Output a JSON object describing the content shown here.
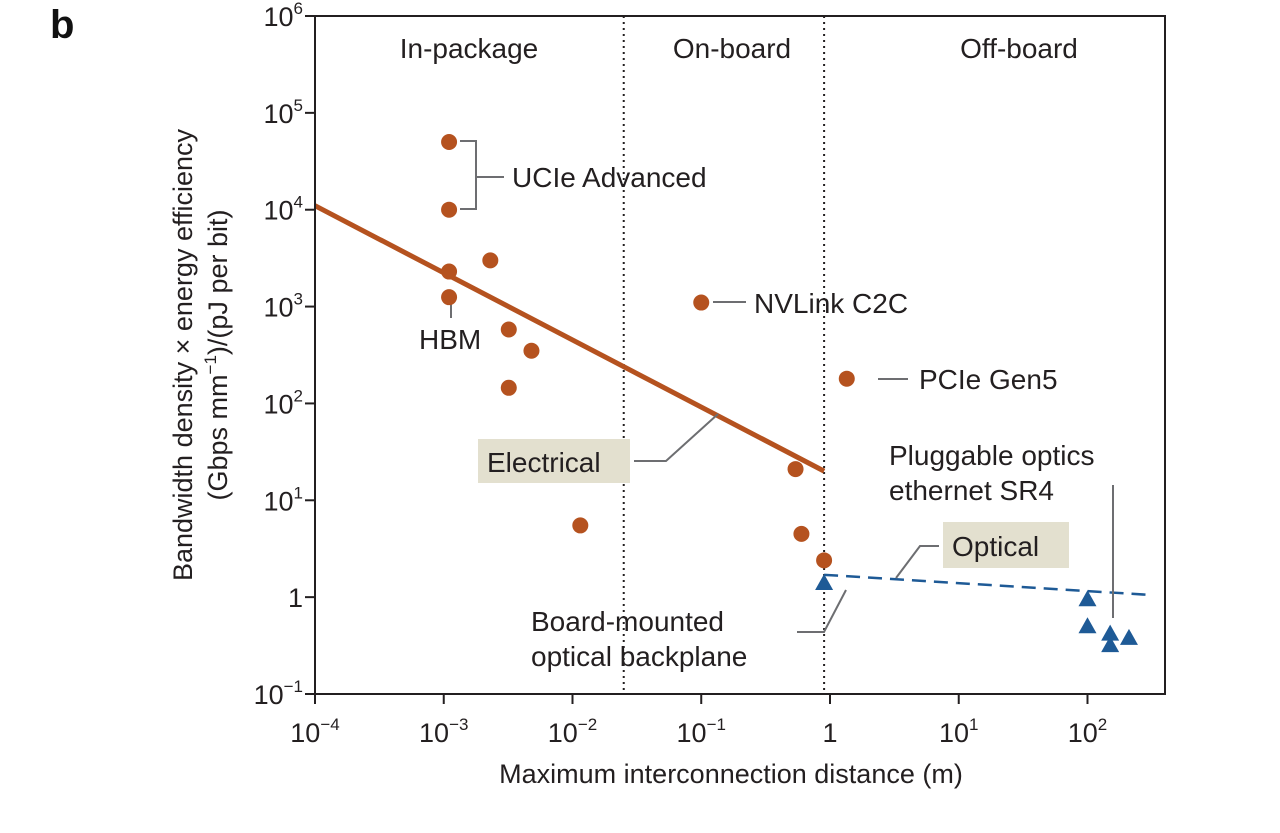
{
  "panel_label": "b",
  "chart_data": {
    "type": "scatter",
    "xlabel": "Maximum interconnection distance (m)",
    "ylabel_line1": "Bandwidth density × energy efficiency",
    "ylabel_line2_prefix": "(Gbps mm",
    "ylabel_line2_exp": "−1",
    "ylabel_line2_suffix": ")/(pJ per bit)",
    "x_scale": "log",
    "y_scale": "log",
    "xlim": [
      0.0001,
      400
    ],
    "ylim": [
      0.1,
      1000000
    ],
    "x_ticks": [
      {
        "value": 0.0001,
        "base": "10",
        "exp": "−4"
      },
      {
        "value": 0.001,
        "base": "10",
        "exp": "−3"
      },
      {
        "value": 0.01,
        "base": "10",
        "exp": "−2"
      },
      {
        "value": 0.1,
        "base": "10",
        "exp": "−1"
      },
      {
        "value": 1,
        "base": "1",
        "exp": ""
      },
      {
        "value": 10,
        "base": "10",
        "exp": "1"
      },
      {
        "value": 100,
        "base": "10",
        "exp": "2"
      }
    ],
    "y_ticks": [
      {
        "value": 0.1,
        "base": "10",
        "exp": "−1"
      },
      {
        "value": 1,
        "base": "1",
        "exp": ""
      },
      {
        "value": 10,
        "base": "10",
        "exp": "1"
      },
      {
        "value": 100,
        "base": "10",
        "exp": "2"
      },
      {
        "value": 1000,
        "base": "10",
        "exp": "3"
      },
      {
        "value": 10000,
        "base": "10",
        "exp": "4"
      },
      {
        "value": 100000,
        "base": "10",
        "exp": "5"
      },
      {
        "value": 1000000,
        "base": "10",
        "exp": "6"
      }
    ],
    "regions": [
      {
        "label": "In-package",
        "x_from": 0.0001,
        "x_to": 0.025
      },
      {
        "label": "On-board",
        "x_from": 0.025,
        "x_to": 0.9
      },
      {
        "label": "Off-board",
        "x_from": 0.9,
        "x_to": 400
      }
    ],
    "region_dividers_x": [
      0.025,
      0.9
    ],
    "colors": {
      "electrical": "#b5521f",
      "optical": "#1e5a96",
      "label_box": "#e3e0cf",
      "axis": "#231f20"
    },
    "series": [
      {
        "name": "Electrical",
        "marker": "circle",
        "points": [
          {
            "x": 0.0011,
            "y": 50000
          },
          {
            "x": 0.0011,
            "y": 10000
          },
          {
            "x": 0.0011,
            "y": 2300
          },
          {
            "x": 0.0011,
            "y": 1250
          },
          {
            "x": 0.0023,
            "y": 3000
          },
          {
            "x": 0.0032,
            "y": 580
          },
          {
            "x": 0.0048,
            "y": 350
          },
          {
            "x": 0.0032,
            "y": 145
          },
          {
            "x": 0.0115,
            "y": 5.5
          },
          {
            "x": 0.1,
            "y": 1100
          },
          {
            "x": 0.54,
            "y": 21
          },
          {
            "x": 0.6,
            "y": 4.5
          },
          {
            "x": 0.9,
            "y": 2.4
          },
          {
            "x": 1.35,
            "y": 180
          }
        ],
        "trend": {
          "x": [
            0.0001,
            0.9
          ],
          "y": [
            11000,
            20
          ]
        }
      },
      {
        "name": "Optical",
        "marker": "triangle",
        "points": [
          {
            "x": 0.9,
            "y": 1.4
          },
          {
            "x": 100,
            "y": 0.95
          },
          {
            "x": 100,
            "y": 0.5
          },
          {
            "x": 150,
            "y": 0.42
          },
          {
            "x": 150,
            "y": 0.32
          },
          {
            "x": 210,
            "y": 0.38
          }
        ],
        "trend": {
          "x": [
            0.9,
            320
          ],
          "y": [
            1.7,
            1.05
          ]
        }
      }
    ],
    "annotations": {
      "ucie_advanced": "UCIe Advanced",
      "hbm": "HBM",
      "nvlink": "NVLink C2C",
      "pcie": "PCIe Gen5",
      "pluggable_line1": "Pluggable optics",
      "pluggable_line2": "ethernet SR4",
      "board_line1": "Board-mounted",
      "board_line2": "optical backplane"
    }
  }
}
